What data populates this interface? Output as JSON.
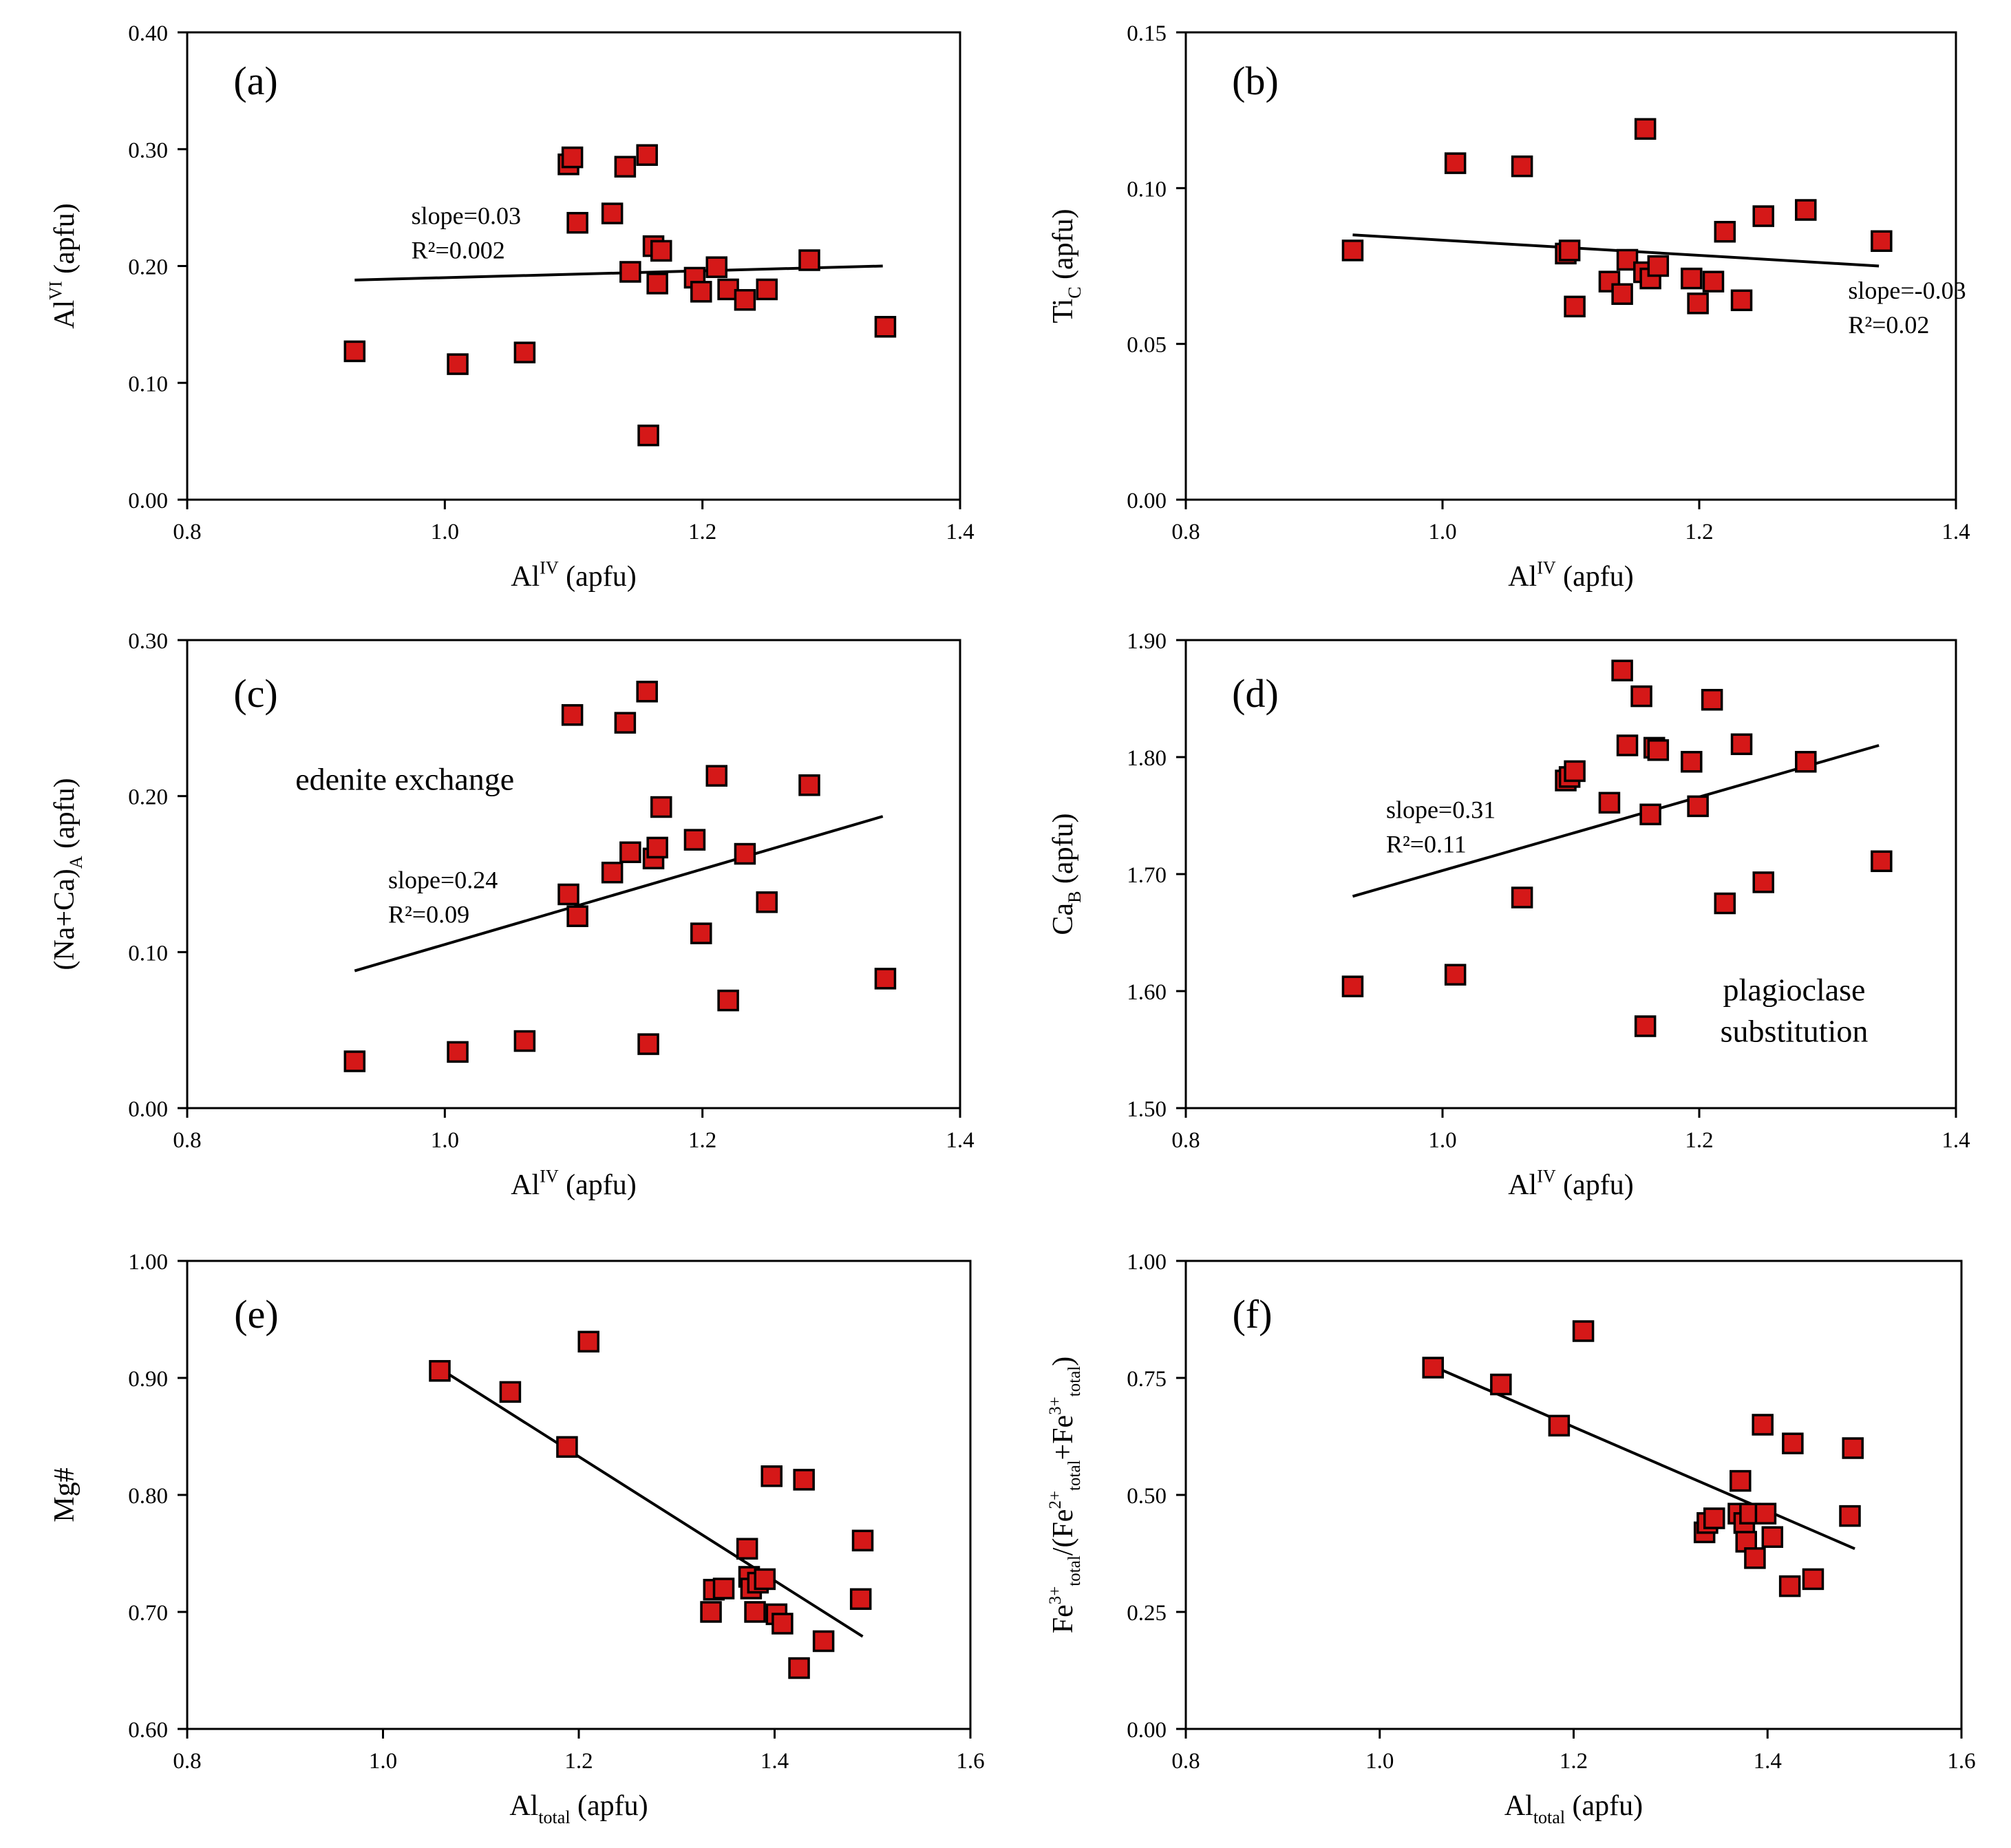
{
  "chart_data": [
    {
      "panel": "(a)",
      "type": "scatter",
      "xlabel": "Al^{IV} (apfu)",
      "ylabel": "Al^{VI} (apfu)",
      "xlim": [
        0.8,
        1.4
      ],
      "ylim": [
        0,
        0.4
      ],
      "xticks": [
        "0.8",
        "1.0",
        "1.2",
        "1.4"
      ],
      "yticks": [
        "0.00",
        "0.10",
        "0.20",
        "0.30",
        "0.40"
      ],
      "points": [
        [
          0.93,
          0.127
        ],
        [
          1.01,
          0.116
        ],
        [
          1.062,
          0.126
        ],
        [
          1.096,
          0.287
        ],
        [
          1.099,
          0.293
        ],
        [
          1.103,
          0.237
        ],
        [
          1.13,
          0.245
        ],
        [
          1.14,
          0.285
        ],
        [
          1.144,
          0.195
        ],
        [
          1.157,
          0.295
        ],
        [
          1.158,
          0.055
        ],
        [
          1.162,
          0.217
        ],
        [
          1.165,
          0.185
        ],
        [
          1.168,
          0.213
        ],
        [
          1.194,
          0.19
        ],
        [
          1.199,
          0.178
        ],
        [
          1.211,
          0.199
        ],
        [
          1.22,
          0.18
        ],
        [
          1.233,
          0.171
        ],
        [
          1.25,
          0.18
        ],
        [
          1.283,
          0.205
        ],
        [
          1.342,
          0.148
        ]
      ],
      "fit": [
        [
          0.93,
          0.188
        ],
        [
          1.34,
          0.2
        ]
      ],
      "annotation": [
        "slope=0.03",
        "R²=0.002"
      ],
      "note": []
    },
    {
      "panel": "(b)",
      "type": "scatter",
      "xlabel": "Al^{IV} (apfu)",
      "ylabel": "Ti_{C} (apfu)",
      "xlim": [
        0.8,
        1.4
      ],
      "ylim": [
        0,
        0.15
      ],
      "xticks": [
        "0.8",
        "1.0",
        "1.2",
        "1.4"
      ],
      "yticks": [
        "0.00",
        "0.05",
        "0.10",
        "0.15"
      ],
      "points": [
        [
          0.93,
          0.08
        ],
        [
          1.01,
          0.108
        ],
        [
          1.062,
          0.107
        ],
        [
          1.096,
          0.079
        ],
        [
          1.099,
          0.08
        ],
        [
          1.103,
          0.062
        ],
        [
          1.13,
          0.07
        ],
        [
          1.14,
          0.066
        ],
        [
          1.144,
          0.077
        ],
        [
          1.157,
          0.073
        ],
        [
          1.158,
          0.119
        ],
        [
          1.162,
          0.071
        ],
        [
          1.168,
          0.075
        ],
        [
          1.194,
          0.071
        ],
        [
          1.199,
          0.063
        ],
        [
          1.211,
          0.07
        ],
        [
          1.22,
          0.086
        ],
        [
          1.233,
          0.064
        ],
        [
          1.25,
          0.091
        ],
        [
          1.283,
          0.093
        ],
        [
          1.342,
          0.083
        ]
      ],
      "fit": [
        [
          0.93,
          0.085
        ],
        [
          1.34,
          0.075
        ]
      ],
      "annotation": [
        "slope=-0.03",
        "R²=0.02"
      ],
      "note": []
    },
    {
      "panel": "(c)",
      "type": "scatter",
      "xlabel": "Al^{IV} (apfu)",
      "ylabel": "(Na+Ca)_{A} (apfu)",
      "xlim": [
        0.8,
        1.4
      ],
      "ylim": [
        0,
        0.3
      ],
      "xticks": [
        "0.8",
        "1.0",
        "1.2",
        "1.4"
      ],
      "yticks": [
        "0.00",
        "0.10",
        "0.20",
        "0.30"
      ],
      "points": [
        [
          0.93,
          0.03
        ],
        [
          1.01,
          0.036
        ],
        [
          1.062,
          0.043
        ],
        [
          1.096,
          0.137
        ],
        [
          1.099,
          0.252
        ],
        [
          1.103,
          0.123
        ],
        [
          1.13,
          0.151
        ],
        [
          1.14,
          0.247
        ],
        [
          1.144,
          0.164
        ],
        [
          1.157,
          0.267
        ],
        [
          1.158,
          0.041
        ],
        [
          1.162,
          0.16
        ],
        [
          1.165,
          0.167
        ],
        [
          1.168,
          0.193
        ],
        [
          1.194,
          0.172
        ],
        [
          1.199,
          0.112
        ],
        [
          1.211,
          0.213
        ],
        [
          1.22,
          0.069
        ],
        [
          1.233,
          0.163
        ],
        [
          1.25,
          0.132
        ],
        [
          1.283,
          0.207
        ],
        [
          1.342,
          0.083
        ]
      ],
      "fit": [
        [
          0.93,
          0.088
        ],
        [
          1.34,
          0.187
        ]
      ],
      "annotation": [
        "slope=0.24",
        "R²=0.09"
      ],
      "note": [
        "edenite exchange"
      ]
    },
    {
      "panel": "(d)",
      "type": "scatter",
      "xlabel": "Al^{IV} (apfu)",
      "ylabel": "Ca_{B} (apfu)",
      "xlim": [
        0.8,
        1.4
      ],
      "ylim": [
        1.5,
        1.9
      ],
      "xticks": [
        "0.8",
        "1.0",
        "1.2",
        "1.4"
      ],
      "yticks": [
        "1.50",
        "1.60",
        "1.70",
        "1.80",
        "1.90"
      ],
      "points": [
        [
          0.93,
          1.604
        ],
        [
          1.01,
          1.614
        ],
        [
          1.062,
          1.68
        ],
        [
          1.096,
          1.78
        ],
        [
          1.099,
          1.783
        ],
        [
          1.103,
          1.788
        ],
        [
          1.13,
          1.761
        ],
        [
          1.14,
          1.874
        ],
        [
          1.144,
          1.81
        ],
        [
          1.155,
          1.852
        ],
        [
          1.158,
          1.57
        ],
        [
          1.162,
          1.751
        ],
        [
          1.165,
          1.808
        ],
        [
          1.168,
          1.806
        ],
        [
          1.194,
          1.796
        ],
        [
          1.199,
          1.758
        ],
        [
          1.21,
          1.849
        ],
        [
          1.22,
          1.675
        ],
        [
          1.233,
          1.811
        ],
        [
          1.25,
          1.693
        ],
        [
          1.283,
          1.796
        ],
        [
          1.342,
          1.711
        ]
      ],
      "fit": [
        [
          0.93,
          1.681
        ],
        [
          1.34,
          1.81
        ]
      ],
      "annotation": [
        "slope=0.31",
        "R²=0.11"
      ],
      "note": [
        "plagioclase",
        "substitution"
      ]
    },
    {
      "panel": "(e)",
      "type": "scatter",
      "xlabel": "Al_{total} (apfu)",
      "ylabel": "Mg#",
      "xlim": [
        0.8,
        1.6
      ],
      "ylim": [
        0.6,
        1.0
      ],
      "xticks": [
        "0.8",
        "1.0",
        "1.2",
        "1.4",
        "1.6"
      ],
      "yticks": [
        "0.60",
        "0.70",
        "0.80",
        "0.90",
        "1.00"
      ],
      "points": [
        [
          1.058,
          0.906
        ],
        [
          1.13,
          0.888
        ],
        [
          1.188,
          0.841
        ],
        [
          1.21,
          0.931
        ],
        [
          1.335,
          0.7
        ],
        [
          1.338,
          0.719
        ],
        [
          1.348,
          0.72
        ],
        [
          1.372,
          0.754
        ],
        [
          1.374,
          0.73
        ],
        [
          1.376,
          0.72
        ],
        [
          1.38,
          0.7
        ],
        [
          1.383,
          0.725
        ],
        [
          1.39,
          0.728
        ],
        [
          1.397,
          0.816
        ],
        [
          1.402,
          0.698
        ],
        [
          1.408,
          0.69
        ],
        [
          1.425,
          0.652
        ],
        [
          1.43,
          0.813
        ],
        [
          1.45,
          0.675
        ],
        [
          1.488,
          0.711
        ],
        [
          1.49,
          0.761
        ]
      ],
      "fit": [
        [
          1.058,
          0.908
        ],
        [
          1.49,
          0.679
        ]
      ],
      "annotation": [],
      "note": []
    },
    {
      "panel": "(f)",
      "type": "scatter",
      "xlabel": "Al_{total} (apfu)",
      "ylabel": "Fe^{3+}_{total}/(Fe^{2+}_{total}+Fe^{3+}_{total})",
      "xlim": [
        0.8,
        1.6
      ],
      "ylim": [
        0,
        1.0
      ],
      "xticks": [
        "0.8",
        "1.0",
        "1.2",
        "1.4",
        "1.6"
      ],
      "yticks": [
        "0.00",
        "0.25",
        "0.50",
        "0.75",
        "1.00"
      ],
      "points": [
        [
          1.055,
          0.772
        ],
        [
          1.125,
          0.736
        ],
        [
          1.185,
          0.648
        ],
        [
          1.21,
          0.85
        ],
        [
          1.335,
          0.42
        ],
        [
          1.338,
          0.44
        ],
        [
          1.345,
          0.45
        ],
        [
          1.37,
          0.46
        ],
        [
          1.372,
          0.53
        ],
        [
          1.376,
          0.44
        ],
        [
          1.378,
          0.4
        ],
        [
          1.382,
          0.46
        ],
        [
          1.387,
          0.365
        ],
        [
          1.395,
          0.65
        ],
        [
          1.398,
          0.46
        ],
        [
          1.405,
          0.41
        ],
        [
          1.423,
          0.305
        ],
        [
          1.426,
          0.61
        ],
        [
          1.447,
          0.32
        ],
        [
          1.485,
          0.455
        ],
        [
          1.488,
          0.6
        ]
      ],
      "fit": [
        [
          1.055,
          0.775
        ],
        [
          1.49,
          0.385
        ]
      ],
      "annotation": [],
      "note": []
    }
  ],
  "colors": {
    "marker_fill": "#d51818",
    "marker_edge": "#000000",
    "line": "#000000"
  }
}
